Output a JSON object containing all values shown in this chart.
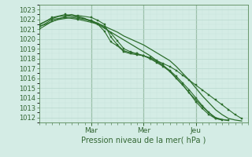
{
  "title": "",
  "xlabel": "Pression niveau de la mer( hPa )",
  "bg_color": "#d4ece5",
  "grid_color_major": "#b8d8ce",
  "grid_color_minor": "#c8e4dc",
  "line_color": "#2d6e2d",
  "ylim": [
    1011.5,
    1023.5
  ],
  "xlim": [
    0,
    96
  ],
  "day_ticks": [
    24,
    48,
    72
  ],
  "day_labels": [
    "Mar",
    "Mer",
    "Jeu"
  ],
  "yticks": [
    1012,
    1013,
    1014,
    1015,
    1016,
    1017,
    1018,
    1019,
    1020,
    1021,
    1022,
    1023
  ],
  "line1": [
    [
      0,
      1021.3
    ],
    [
      3,
      1021.5
    ],
    [
      6,
      1021.8
    ],
    [
      9,
      1022.0
    ],
    [
      12,
      1022.1
    ],
    [
      15,
      1022.2
    ],
    [
      18,
      1022.1
    ],
    [
      21,
      1022.0
    ],
    [
      24,
      1021.8
    ],
    [
      27,
      1021.6
    ],
    [
      30,
      1021.3
    ],
    [
      33,
      1021.0
    ],
    [
      36,
      1020.7
    ],
    [
      39,
      1020.3
    ],
    [
      42,
      1020.0
    ],
    [
      45,
      1019.7
    ],
    [
      48,
      1019.4
    ],
    [
      51,
      1019.0
    ],
    [
      54,
      1018.6
    ],
    [
      57,
      1018.2
    ],
    [
      60,
      1017.8
    ],
    [
      63,
      1017.2
    ],
    [
      66,
      1016.5
    ],
    [
      69,
      1015.8
    ],
    [
      72,
      1015.0
    ],
    [
      75,
      1014.2
    ],
    [
      78,
      1013.5
    ],
    [
      81,
      1012.8
    ],
    [
      84,
      1012.3
    ],
    [
      87,
      1011.9
    ],
    [
      90,
      1011.75
    ],
    [
      93,
      1011.65
    ]
  ],
  "line2": [
    [
      0,
      1021.5
    ],
    [
      3,
      1021.8
    ],
    [
      6,
      1022.1
    ],
    [
      9,
      1022.3
    ],
    [
      12,
      1022.4
    ],
    [
      15,
      1022.5
    ],
    [
      18,
      1022.3
    ],
    [
      21,
      1022.1
    ],
    [
      24,
      1021.8
    ],
    [
      27,
      1021.5
    ],
    [
      30,
      1021.1
    ],
    [
      33,
      1020.7
    ],
    [
      36,
      1020.3
    ],
    [
      39,
      1019.9
    ],
    [
      42,
      1019.5
    ],
    [
      45,
      1019.1
    ],
    [
      48,
      1018.7
    ],
    [
      51,
      1018.3
    ],
    [
      54,
      1017.8
    ],
    [
      57,
      1017.3
    ],
    [
      60,
      1016.7
    ],
    [
      63,
      1016.0
    ],
    [
      66,
      1015.3
    ],
    [
      69,
      1014.5
    ],
    [
      72,
      1013.8
    ],
    [
      75,
      1013.1
    ],
    [
      78,
      1012.5
    ],
    [
      81,
      1012.0
    ],
    [
      84,
      1011.8
    ],
    [
      87,
      1011.7
    ]
  ],
  "line3_markers": [
    [
      0,
      1021.2
    ],
    [
      6,
      1022.0
    ],
    [
      12,
      1022.2
    ],
    [
      18,
      1022.0
    ],
    [
      24,
      1021.7
    ],
    [
      27,
      1021.5
    ],
    [
      30,
      1020.8
    ],
    [
      33,
      1019.7
    ],
    [
      36,
      1019.3
    ],
    [
      39,
      1018.7
    ],
    [
      42,
      1018.5
    ],
    [
      45,
      1018.4
    ],
    [
      48,
      1018.3
    ],
    [
      51,
      1018.1
    ],
    [
      54,
      1017.8
    ],
    [
      57,
      1017.5
    ],
    [
      60,
      1017.2
    ],
    [
      63,
      1016.8
    ],
    [
      66,
      1016.3
    ],
    [
      69,
      1015.8
    ],
    [
      72,
      1015.3
    ],
    [
      75,
      1014.8
    ],
    [
      78,
      1014.3
    ],
    [
      81,
      1013.8
    ],
    [
      84,
      1013.3
    ],
    [
      87,
      1012.8
    ],
    [
      90,
      1012.3
    ],
    [
      93,
      1011.9
    ]
  ],
  "line4_markers": [
    [
      0,
      1021.0
    ],
    [
      6,
      1021.8
    ],
    [
      12,
      1022.3
    ],
    [
      18,
      1022.4
    ],
    [
      24,
      1022.2
    ],
    [
      27,
      1021.9
    ],
    [
      30,
      1021.5
    ],
    [
      33,
      1020.2
    ],
    [
      36,
      1019.4
    ],
    [
      39,
      1018.8
    ],
    [
      42,
      1018.6
    ],
    [
      45,
      1018.5
    ],
    [
      48,
      1018.3
    ],
    [
      51,
      1018.0
    ],
    [
      54,
      1017.7
    ],
    [
      57,
      1017.3
    ],
    [
      60,
      1016.8
    ],
    [
      63,
      1016.2
    ],
    [
      66,
      1015.5
    ],
    [
      69,
      1014.8
    ],
    [
      72,
      1014.0
    ],
    [
      75,
      1013.2
    ],
    [
      78,
      1012.5
    ],
    [
      81,
      1011.9
    ],
    [
      84,
      1011.75
    ]
  ],
  "line5_markers": [
    [
      0,
      1021.4
    ],
    [
      6,
      1022.2
    ],
    [
      12,
      1022.5
    ],
    [
      18,
      1022.2
    ],
    [
      24,
      1021.9
    ],
    [
      27,
      1021.6
    ],
    [
      30,
      1021.2
    ],
    [
      33,
      1020.6
    ],
    [
      36,
      1019.8
    ],
    [
      39,
      1019.0
    ],
    [
      42,
      1018.7
    ],
    [
      45,
      1018.5
    ],
    [
      48,
      1018.3
    ],
    [
      51,
      1018.0
    ],
    [
      54,
      1017.6
    ],
    [
      57,
      1017.2
    ],
    [
      60,
      1016.7
    ],
    [
      63,
      1016.0
    ],
    [
      66,
      1015.3
    ],
    [
      69,
      1014.5
    ],
    [
      72,
      1013.6
    ],
    [
      75,
      1012.9
    ],
    [
      78,
      1012.3
    ],
    [
      81,
      1011.9
    ],
    [
      87,
      1011.7
    ]
  ]
}
